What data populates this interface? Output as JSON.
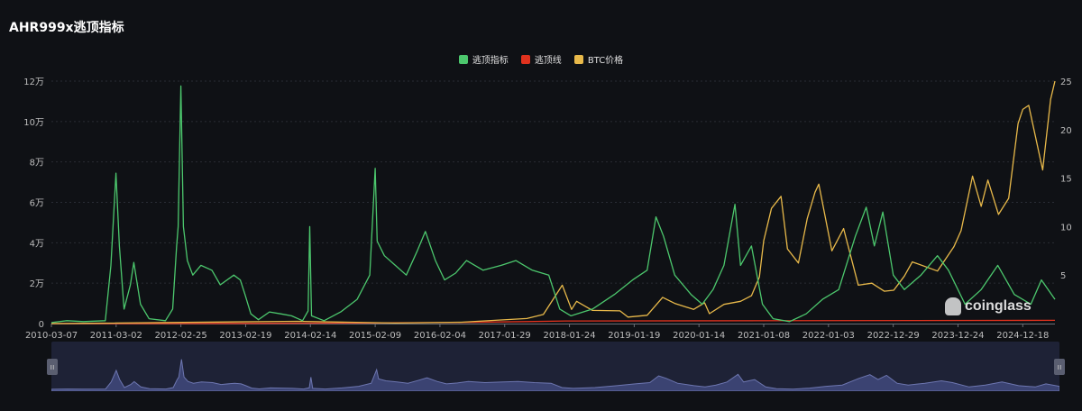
{
  "title": "AHR999x逃顶指标",
  "legend": [
    {
      "label": "逃顶指标",
      "color": "#4cc76d"
    },
    {
      "label": "逃顶线",
      "color": "#e0321e"
    },
    {
      "label": "BTC价格",
      "color": "#e8b94a"
    }
  ],
  "watermark": "coinglass",
  "chart_data": {
    "type": "line",
    "left_axis": {
      "ticks": [
        "0",
        "2万",
        "4万",
        "6万",
        "8万",
        "10万",
        "12万"
      ],
      "range": [
        0,
        120000
      ]
    },
    "right_axis": {
      "ticks": [
        "5",
        "10",
        "15",
        "20",
        "25"
      ],
      "range": [
        0,
        25
      ]
    },
    "x_ticks": [
      "2010-03-07",
      "2011-03-02",
      "2012-02-25",
      "2013-02-19",
      "2014-02-14",
      "2015-02-09",
      "2016-02-04",
      "2017-01-29",
      "2018-01-24",
      "2019-01-19",
      "2020-01-14",
      "2021-01-08",
      "2022-01-03",
      "2022-12-29",
      "2023-12-24",
      "2024-12-18"
    ],
    "x_range": [
      "2010-03-07",
      "2025-06-15"
    ],
    "grid": true,
    "legend_position": "top-center",
    "series": [
      {
        "name": "逃顶指标",
        "axis": "right",
        "color": "#4cc76d",
        "points": [
          [
            "2010-03-07",
            0.1
          ],
          [
            "2010-06-01",
            0.3
          ],
          [
            "2010-09-01",
            0.2
          ],
          [
            "2011-01-01",
            0.3
          ],
          [
            "2011-02-01",
            6
          ],
          [
            "2011-03-01",
            15.5
          ],
          [
            "2011-03-20",
            8
          ],
          [
            "2011-04-15",
            1.5
          ],
          [
            "2011-05-20",
            4
          ],
          [
            "2011-06-08",
            6.3
          ],
          [
            "2011-07-15",
            2
          ],
          [
            "2011-09-01",
            0.5
          ],
          [
            "2011-12-01",
            0.3
          ],
          [
            "2012-01-10",
            1.5
          ],
          [
            "2012-02-01",
            8
          ],
          [
            "2012-02-10",
            10
          ],
          [
            "2012-02-25",
            24.5
          ],
          [
            "2012-03-10",
            10
          ],
          [
            "2012-04-01",
            6.5
          ],
          [
            "2012-05-01",
            5
          ],
          [
            "2012-06-15",
            6
          ],
          [
            "2012-08-15",
            5.5
          ],
          [
            "2012-10-01",
            4
          ],
          [
            "2012-12-15",
            5
          ],
          [
            "2013-01-20",
            4.5
          ],
          [
            "2013-02-15",
            3
          ],
          [
            "2013-03-20",
            1
          ],
          [
            "2013-05-01",
            0.4
          ],
          [
            "2013-07-01",
            1.2
          ],
          [
            "2013-09-01",
            1
          ],
          [
            "2013-11-01",
            0.8
          ],
          [
            "2014-01-01",
            0.3
          ],
          [
            "2014-02-01",
            1.3
          ],
          [
            "2014-02-10",
            10
          ],
          [
            "2014-02-20",
            0.8
          ],
          [
            "2014-05-01",
            0.3
          ],
          [
            "2014-08-01",
            1.2
          ],
          [
            "2014-11-01",
            2.5
          ],
          [
            "2015-01-10",
            5
          ],
          [
            "2015-02-09",
            16
          ],
          [
            "2015-02-20",
            8.5
          ],
          [
            "2015-04-01",
            7
          ],
          [
            "2015-06-01",
            6
          ],
          [
            "2015-08-01",
            5
          ],
          [
            "2015-10-01",
            7.5
          ],
          [
            "2015-11-15",
            9.5
          ],
          [
            "2016-01-10",
            6.5
          ],
          [
            "2016-03-01",
            4.5
          ],
          [
            "2016-05-01",
            5.2
          ],
          [
            "2016-07-01",
            6.5
          ],
          [
            "2016-10-01",
            5.5
          ],
          [
            "2017-01-10",
            6
          ],
          [
            "2017-04-01",
            6.5
          ],
          [
            "2017-07-01",
            5.5
          ],
          [
            "2017-10-01",
            5
          ],
          [
            "2017-12-01",
            1.5
          ],
          [
            "2018-02-01",
            0.8
          ],
          [
            "2018-06-01",
            1.5
          ],
          [
            "2018-10-01",
            3
          ],
          [
            "2019-01-10",
            4.5
          ],
          [
            "2019-04-01",
            5.5
          ],
          [
            "2019-05-20",
            11
          ],
          [
            "2019-07-01",
            9
          ],
          [
            "2019-09-01",
            5
          ],
          [
            "2019-12-01",
            3
          ],
          [
            "2020-02-01",
            2
          ],
          [
            "2020-04-01",
            3.5
          ],
          [
            "2020-06-01",
            6
          ],
          [
            "2020-08-01",
            12.3
          ],
          [
            "2020-09-01",
            6
          ],
          [
            "2020-11-01",
            8
          ],
          [
            "2021-01-01",
            2
          ],
          [
            "2021-03-01",
            0.5
          ],
          [
            "2021-06-01",
            0.2
          ],
          [
            "2021-09-01",
            1
          ],
          [
            "2021-12-01",
            2.5
          ],
          [
            "2022-03-01",
            3.5
          ],
          [
            "2022-06-01",
            9
          ],
          [
            "2022-08-01",
            12
          ],
          [
            "2022-09-15",
            8
          ],
          [
            "2022-11-01",
            11.5
          ],
          [
            "2022-12-29",
            5
          ],
          [
            "2023-03-01",
            3.5
          ],
          [
            "2023-06-01",
            5
          ],
          [
            "2023-09-01",
            7
          ],
          [
            "2023-11-01",
            5.5
          ],
          [
            "2024-02-01",
            2
          ],
          [
            "2024-05-01",
            3.5
          ],
          [
            "2024-08-01",
            6
          ],
          [
            "2024-11-01",
            3
          ],
          [
            "2025-02-01",
            2
          ],
          [
            "2025-04-01",
            4.5
          ],
          [
            "2025-06-15",
            2.5
          ]
        ]
      },
      {
        "name": "逃顶线",
        "axis": "left",
        "color": "#e0321e",
        "points": [
          [
            "2010-03-07",
            1
          ],
          [
            "2013-01-01",
            100
          ],
          [
            "2015-01-01",
            300
          ],
          [
            "2016-06-01",
            600
          ],
          [
            "2017-06-01",
            1000
          ],
          [
            "2018-01-01",
            1300
          ],
          [
            "2025-06-15",
            1600
          ]
        ]
      },
      {
        "name": "BTC价格",
        "axis": "left",
        "color": "#e8b94a",
        "points": [
          [
            "2010-03-07",
            0
          ],
          [
            "2013-12-01",
            1100
          ],
          [
            "2015-06-01",
            250
          ],
          [
            "2016-06-01",
            650
          ],
          [
            "2017-06-01",
            2500
          ],
          [
            "2017-09-01",
            4500
          ],
          [
            "2017-12-15",
            19000
          ],
          [
            "2018-02-05",
            7000
          ],
          [
            "2018-03-05",
            11000
          ],
          [
            "2018-06-01",
            6500
          ],
          [
            "2018-11-01",
            6300
          ],
          [
            "2018-12-15",
            3200
          ],
          [
            "2019-04-01",
            4100
          ],
          [
            "2019-06-26",
            13000
          ],
          [
            "2019-09-01",
            10000
          ],
          [
            "2019-12-15",
            7000
          ],
          [
            "2020-02-14",
            10300
          ],
          [
            "2020-03-12",
            4900
          ],
          [
            "2020-06-01",
            9500
          ],
          [
            "2020-09-01",
            11000
          ],
          [
            "2020-11-01",
            13800
          ],
          [
            "2020-12-15",
            23000
          ],
          [
            "2021-01-08",
            41000
          ],
          [
            "2021-02-20",
            57000
          ],
          [
            "2021-04-14",
            63000
          ],
          [
            "2021-05-20",
            37000
          ],
          [
            "2021-07-20",
            30000
          ],
          [
            "2021-09-07",
            52000
          ],
          [
            "2021-10-20",
            65000
          ],
          [
            "2021-11-10",
            69000
          ],
          [
            "2022-01-22",
            36000
          ],
          [
            "2022-03-28",
            47000
          ],
          [
            "2022-06-18",
            19000
          ],
          [
            "2022-09-01",
            20000
          ],
          [
            "2022-11-09",
            16000
          ],
          [
            "2023-01-01",
            16500
          ],
          [
            "2023-03-01",
            23500
          ],
          [
            "2023-04-14",
            30500
          ],
          [
            "2023-09-01",
            26000
          ],
          [
            "2023-12-01",
            38000
          ],
          [
            "2024-01-10",
            46000
          ],
          [
            "2024-03-14",
            73000
          ],
          [
            "2024-05-01",
            58000
          ],
          [
            "2024-06-07",
            71000
          ],
          [
            "2024-08-05",
            54000
          ],
          [
            "2024-10-01",
            62000
          ],
          [
            "2024-11-22",
            99000
          ],
          [
            "2024-12-18",
            106000
          ],
          [
            "2025-01-20",
            108000
          ],
          [
            "2025-04-08",
            76000
          ],
          [
            "2025-05-22",
            111000
          ],
          [
            "2025-06-15",
            120000
          ]
        ]
      }
    ],
    "brush": {
      "start": "2010-03-07",
      "end": "2025-06-15"
    }
  }
}
